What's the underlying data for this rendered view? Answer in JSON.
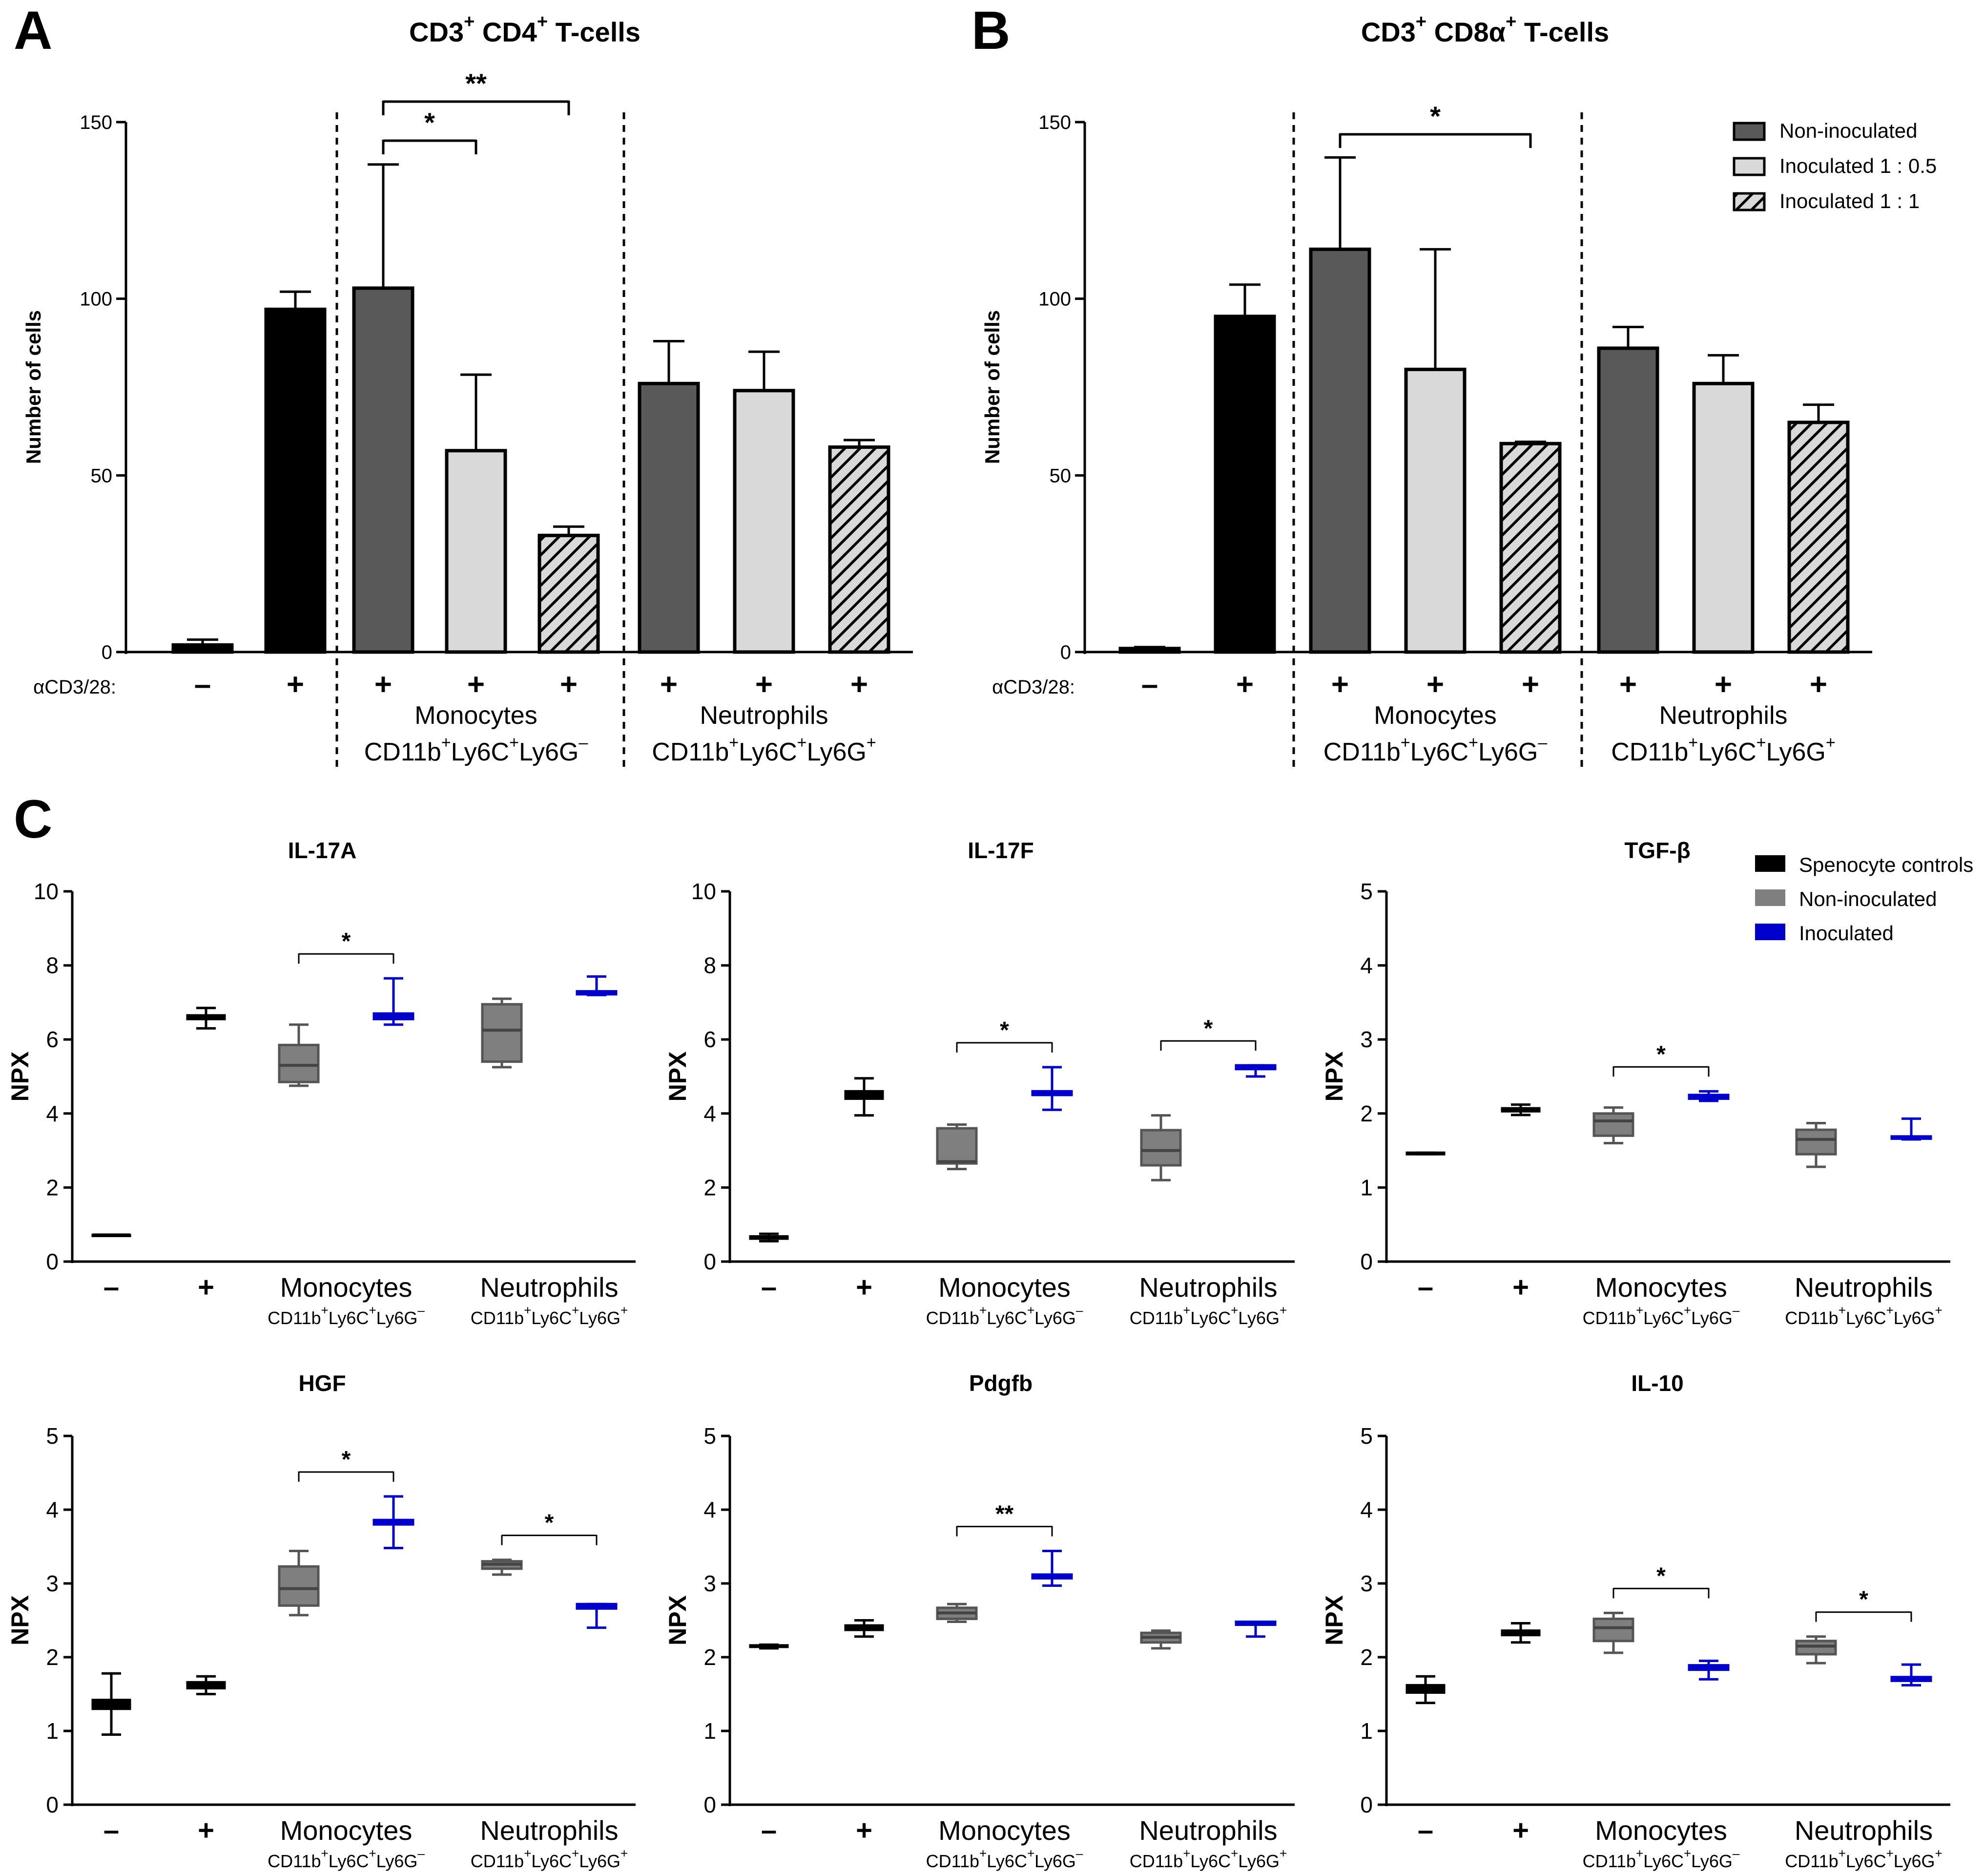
{
  "panels_ab": [
    {
      "letter": "A",
      "title_parts": [
        "CD3",
        "+",
        " CD4",
        "+",
        " T-cells"
      ],
      "ylabel": "Number of cells",
      "yticks": [
        "0",
        "50",
        "100",
        "150"
      ],
      "stim_label": "αCD3/28:",
      "stim_signs": [
        "–",
        "+",
        "+",
        "+",
        "+",
        "+",
        "+",
        "+"
      ],
      "group1_name": "Monocytes",
      "group1_markers": [
        "CD11b",
        "+",
        "Ly6C",
        "+",
        "Ly6G",
        "–"
      ],
      "group2_name": "Neutrophils",
      "group2_markers": [
        "CD11b",
        "+",
        "Ly6C",
        "+",
        "Ly6G",
        "+"
      ],
      "comparisons": [
        {
          "label": "*"
        },
        {
          "label": "**"
        }
      ]
    },
    {
      "letter": "B",
      "title_parts": [
        "CD3",
        "+",
        " CD8α",
        "+",
        " T-cells"
      ],
      "ylabel": "Number of cells",
      "yticks": [
        "0",
        "50",
        "100",
        "150"
      ],
      "stim_label": "αCD3/28:",
      "stim_signs": [
        "–",
        "+",
        "+",
        "+",
        "+",
        "+",
        "+",
        "+"
      ],
      "group1_name": "Monocytes",
      "group1_markers": [
        "CD11b",
        "+",
        "Ly6C",
        "+",
        "Ly6G",
        "–"
      ],
      "group2_name": "Neutrophils",
      "group2_markers": [
        "CD11b",
        "+",
        "Ly6C",
        "+",
        "Ly6G",
        "+"
      ],
      "comparisons": [
        {
          "label": "*"
        }
      ],
      "legend": [
        "Non-inoculated",
        "Inoculated 1 : 0.5",
        "Inoculated 1 : 1"
      ]
    }
  ],
  "panel_c": {
    "letter": "C",
    "ylabel": "NPX",
    "x_signs": [
      "–",
      "+"
    ],
    "group1_name": "Monocytes",
    "group1_markers": [
      "CD11b",
      "+",
      "Ly6C",
      "+",
      "Ly6G",
      "–"
    ],
    "group2_name": "Neutrophils",
    "group2_markers": [
      "CD11b",
      "+",
      "Ly6C",
      "+",
      "Ly6G",
      "+"
    ],
    "legend": [
      "Spenocyte controls",
      "Non-inoculated",
      "Inoculated"
    ],
    "plot_titles": [
      "IL-17A",
      "IL-17F",
      "TGF-β",
      "HGF",
      "Pdgfb",
      "IL-10"
    ],
    "yticks_10": [
      "0",
      "2",
      "4",
      "6",
      "8",
      "10"
    ],
    "yticks_5": [
      "0",
      "1",
      "2",
      "3",
      "4",
      "5"
    ]
  },
  "colors": {
    "black": "#000000",
    "dark_gray": "#595959",
    "light_gray": "#d9d9d9",
    "box_gray": "#7f7f7f",
    "blue": "#0000cc",
    "hatch_fill": "#d9d9d9"
  },
  "chart_data": [
    {
      "type": "bar",
      "panel": "A",
      "title": "CD3+ CD4+ T-cells",
      "ylabel": "Number of cells",
      "ylim": [
        0,
        150
      ],
      "categories": [
        "–",
        "+",
        "Monocytes Non-inoculated",
        "Monocytes Inoculated 1 : 0.5",
        "Monocytes Inoculated 1 : 1",
        "Neutrophils Non-inoculated",
        "Neutrophils Inoculated 1 : 0.5",
        "Neutrophils Inoculated 1 : 1"
      ],
      "values": [
        2,
        97,
        103,
        57,
        33,
        76,
        74,
        58
      ],
      "errors": [
        1.5,
        5,
        35,
        21.5,
        2.5,
        12,
        11,
        2
      ],
      "significance": [
        {
          "from": 2,
          "to": 3,
          "label": "*"
        },
        {
          "from": 2,
          "to": 4,
          "label": "**"
        }
      ]
    },
    {
      "type": "bar",
      "panel": "B",
      "title": "CD3+ CD8α+ T-cells",
      "ylabel": "Number of cells",
      "ylim": [
        0,
        150
      ],
      "categories": [
        "–",
        "+",
        "Monocytes Non-inoculated",
        "Monocytes Inoculated 1 : 0.5",
        "Monocytes Inoculated 1 : 1",
        "Neutrophils Non-inoculated",
        "Neutrophils Inoculated 1 : 0.5",
        "Neutrophils Inoculated 1 : 1"
      ],
      "values": [
        1,
        95,
        114,
        80,
        59,
        86,
        76,
        65
      ],
      "errors": [
        0.4,
        9,
        26,
        34,
        0.5,
        6,
        8,
        5
      ],
      "significance": [
        {
          "from": 2,
          "to": 4,
          "label": "*"
        }
      ],
      "legend": [
        "Non-inoculated",
        "Inoculated 1 : 0.5",
        "Inoculated 1 : 1"
      ]
    },
    {
      "type": "box",
      "panel": "C",
      "title": "IL-17A",
      "ylabel": "NPX",
      "ylim": [
        0,
        10
      ],
      "series": [
        {
          "name": "Spenocyte controls",
          "x": "–",
          "min": 0.72,
          "q1": 0.72,
          "median": 0.72,
          "q3": 0.72,
          "max": 0.72
        },
        {
          "name": "Spenocyte controls",
          "x": "+",
          "min": 6.3,
          "q1": 6.55,
          "median": 6.6,
          "q3": 6.65,
          "max": 6.85
        },
        {
          "name": "Non-inoculated",
          "x": "Monocytes",
          "min": 4.75,
          "q1": 4.85,
          "median": 5.3,
          "q3": 5.85,
          "max": 6.4
        },
        {
          "name": "Inoculated",
          "x": "Monocytes",
          "min": 6.4,
          "q1": 6.55,
          "median": 6.6,
          "q3": 6.7,
          "max": 7.65
        },
        {
          "name": "Non-inoculated",
          "x": "Neutrophils",
          "min": 5.25,
          "q1": 5.4,
          "median": 6.25,
          "q3": 6.95,
          "max": 7.1
        },
        {
          "name": "Inoculated",
          "x": "Neutrophils",
          "min": 7.2,
          "q1": 7.22,
          "median": 7.25,
          "q3": 7.3,
          "max": 7.7
        }
      ],
      "significance": [
        {
          "group": "Monocytes",
          "label": "*"
        }
      ]
    },
    {
      "type": "box",
      "panel": "C",
      "title": "IL-17F",
      "ylabel": "NPX",
      "ylim": [
        0,
        10
      ],
      "series": [
        {
          "name": "Spenocyte controls",
          "x": "–",
          "min": 0.55,
          "q1": 0.62,
          "median": 0.65,
          "q3": 0.68,
          "max": 0.75
        },
        {
          "name": "Spenocyte controls",
          "x": "+",
          "min": 3.95,
          "q1": 4.4,
          "median": 4.5,
          "q3": 4.6,
          "max": 4.95
        },
        {
          "name": "Non-inoculated",
          "x": "Monocytes",
          "min": 2.5,
          "q1": 2.65,
          "median": 2.7,
          "q3": 3.6,
          "max": 3.7
        },
        {
          "name": "Inoculated",
          "x": "Monocytes",
          "min": 4.1,
          "q1": 4.5,
          "median": 4.55,
          "q3": 4.6,
          "max": 5.25
        },
        {
          "name": "Non-inoculated",
          "x": "Neutrophils",
          "min": 2.2,
          "q1": 2.6,
          "median": 3.0,
          "q3": 3.55,
          "max": 3.95
        },
        {
          "name": "Inoculated",
          "x": "Neutrophils",
          "min": 5.0,
          "q1": 5.2,
          "median": 5.25,
          "q3": 5.3,
          "max": 5.3
        }
      ],
      "significance": [
        {
          "group": "Monocytes",
          "label": "*"
        },
        {
          "group": "Neutrophils",
          "label": "*"
        }
      ]
    },
    {
      "type": "box",
      "panel": "C",
      "title": "TGF-β",
      "ylabel": "NPX",
      "ylim": [
        0,
        5
      ],
      "series": [
        {
          "name": "Spenocyte controls",
          "x": "–",
          "min": 1.45,
          "q1": 1.45,
          "median": 1.46,
          "q3": 1.47,
          "max": 1.47
        },
        {
          "name": "Spenocyte controls",
          "x": "+",
          "min": 1.98,
          "q1": 2.03,
          "median": 2.05,
          "q3": 2.07,
          "max": 2.12
        },
        {
          "name": "Non-inoculated",
          "x": "Monocytes",
          "min": 1.6,
          "q1": 1.7,
          "median": 1.9,
          "q3": 2.0,
          "max": 2.08
        },
        {
          "name": "Inoculated",
          "x": "Monocytes",
          "min": 2.17,
          "q1": 2.2,
          "median": 2.22,
          "q3": 2.25,
          "max": 2.3
        },
        {
          "name": "Non-inoculated",
          "x": "Neutrophils",
          "min": 1.28,
          "q1": 1.45,
          "median": 1.65,
          "q3": 1.78,
          "max": 1.87
        },
        {
          "name": "Inoculated",
          "x": "Neutrophils",
          "min": 1.65,
          "q1": 1.66,
          "median": 1.67,
          "q3": 1.69,
          "max": 1.93
        }
      ],
      "significance": [
        {
          "group": "Monocytes",
          "label": "*"
        }
      ]
    },
    {
      "type": "box",
      "panel": "C",
      "title": "HGF",
      "ylabel": "NPX",
      "ylim": [
        0,
        5
      ],
      "series": [
        {
          "name": "Spenocyte controls",
          "x": "–",
          "min": 0.95,
          "q1": 1.3,
          "median": 1.37,
          "q3": 1.42,
          "max": 1.78
        },
        {
          "name": "Spenocyte controls",
          "x": "+",
          "min": 1.5,
          "q1": 1.58,
          "median": 1.62,
          "q3": 1.66,
          "max": 1.74
        },
        {
          "name": "Non-inoculated",
          "x": "Monocytes",
          "min": 2.57,
          "q1": 2.7,
          "median": 2.93,
          "q3": 3.23,
          "max": 3.44
        },
        {
          "name": "Inoculated",
          "x": "Monocytes",
          "min": 3.48,
          "q1": 3.8,
          "median": 3.83,
          "q3": 3.86,
          "max": 4.18
        },
        {
          "name": "Non-inoculated",
          "x": "Neutrophils",
          "min": 3.12,
          "q1": 3.2,
          "median": 3.26,
          "q3": 3.3,
          "max": 3.32
        },
        {
          "name": "Inoculated",
          "x": "Neutrophils",
          "min": 2.4,
          "q1": 2.66,
          "median": 2.7,
          "q3": 2.72,
          "max": 2.72
        }
      ],
      "significance": [
        {
          "group": "Monocytes",
          "label": "*"
        },
        {
          "group": "Neutrophils",
          "label": "*"
        }
      ]
    },
    {
      "type": "box",
      "panel": "C",
      "title": "Pdgfb",
      "ylabel": "NPX",
      "ylim": [
        0,
        5
      ],
      "series": [
        {
          "name": "Spenocyte controls",
          "x": "–",
          "min": 2.12,
          "q1": 2.14,
          "median": 2.15,
          "q3": 2.16,
          "max": 2.17
        },
        {
          "name": "Spenocyte controls",
          "x": "+",
          "min": 2.28,
          "q1": 2.37,
          "median": 2.4,
          "q3": 2.43,
          "max": 2.5
        },
        {
          "name": "Non-inoculated",
          "x": "Monocytes",
          "min": 2.48,
          "q1": 2.52,
          "median": 2.6,
          "q3": 2.67,
          "max": 2.72
        },
        {
          "name": "Inoculated",
          "x": "Monocytes",
          "min": 2.97,
          "q1": 3.07,
          "median": 3.1,
          "q3": 3.12,
          "max": 3.44
        },
        {
          "name": "Non-inoculated",
          "x": "Neutrophils",
          "min": 2.12,
          "q1": 2.2,
          "median": 2.27,
          "q3": 2.33,
          "max": 2.36
        },
        {
          "name": "Inoculated",
          "x": "Neutrophils",
          "min": 2.28,
          "q1": 2.44,
          "median": 2.46,
          "q3": 2.48,
          "max": 2.48
        }
      ],
      "significance": [
        {
          "group": "Monocytes",
          "label": "**"
        }
      ]
    },
    {
      "type": "box",
      "panel": "C",
      "title": "IL-10",
      "ylabel": "NPX",
      "ylim": [
        0,
        5
      ],
      "series": [
        {
          "name": "Spenocyte controls",
          "x": "–",
          "min": 1.38,
          "q1": 1.52,
          "median": 1.57,
          "q3": 1.62,
          "max": 1.74
        },
        {
          "name": "Spenocyte controls",
          "x": "+",
          "min": 2.2,
          "q1": 2.3,
          "median": 2.33,
          "q3": 2.36,
          "max": 2.46
        },
        {
          "name": "Non-inoculated",
          "x": "Monocytes",
          "min": 2.06,
          "q1": 2.22,
          "median": 2.4,
          "q3": 2.52,
          "max": 2.6
        },
        {
          "name": "Inoculated",
          "x": "Monocytes",
          "min": 1.7,
          "q1": 1.83,
          "median": 1.86,
          "q3": 1.89,
          "max": 1.95
        },
        {
          "name": "Non-inoculated",
          "x": "Neutrophils",
          "min": 1.92,
          "q1": 2.04,
          "median": 2.15,
          "q3": 2.22,
          "max": 2.28
        },
        {
          "name": "Inoculated",
          "x": "Neutrophils",
          "min": 1.62,
          "q1": 1.68,
          "median": 1.7,
          "q3": 1.73,
          "max": 1.9
        }
      ],
      "significance": [
        {
          "group": "Monocytes",
          "label": "*"
        },
        {
          "group": "Neutrophils",
          "label": "*"
        }
      ]
    }
  ]
}
